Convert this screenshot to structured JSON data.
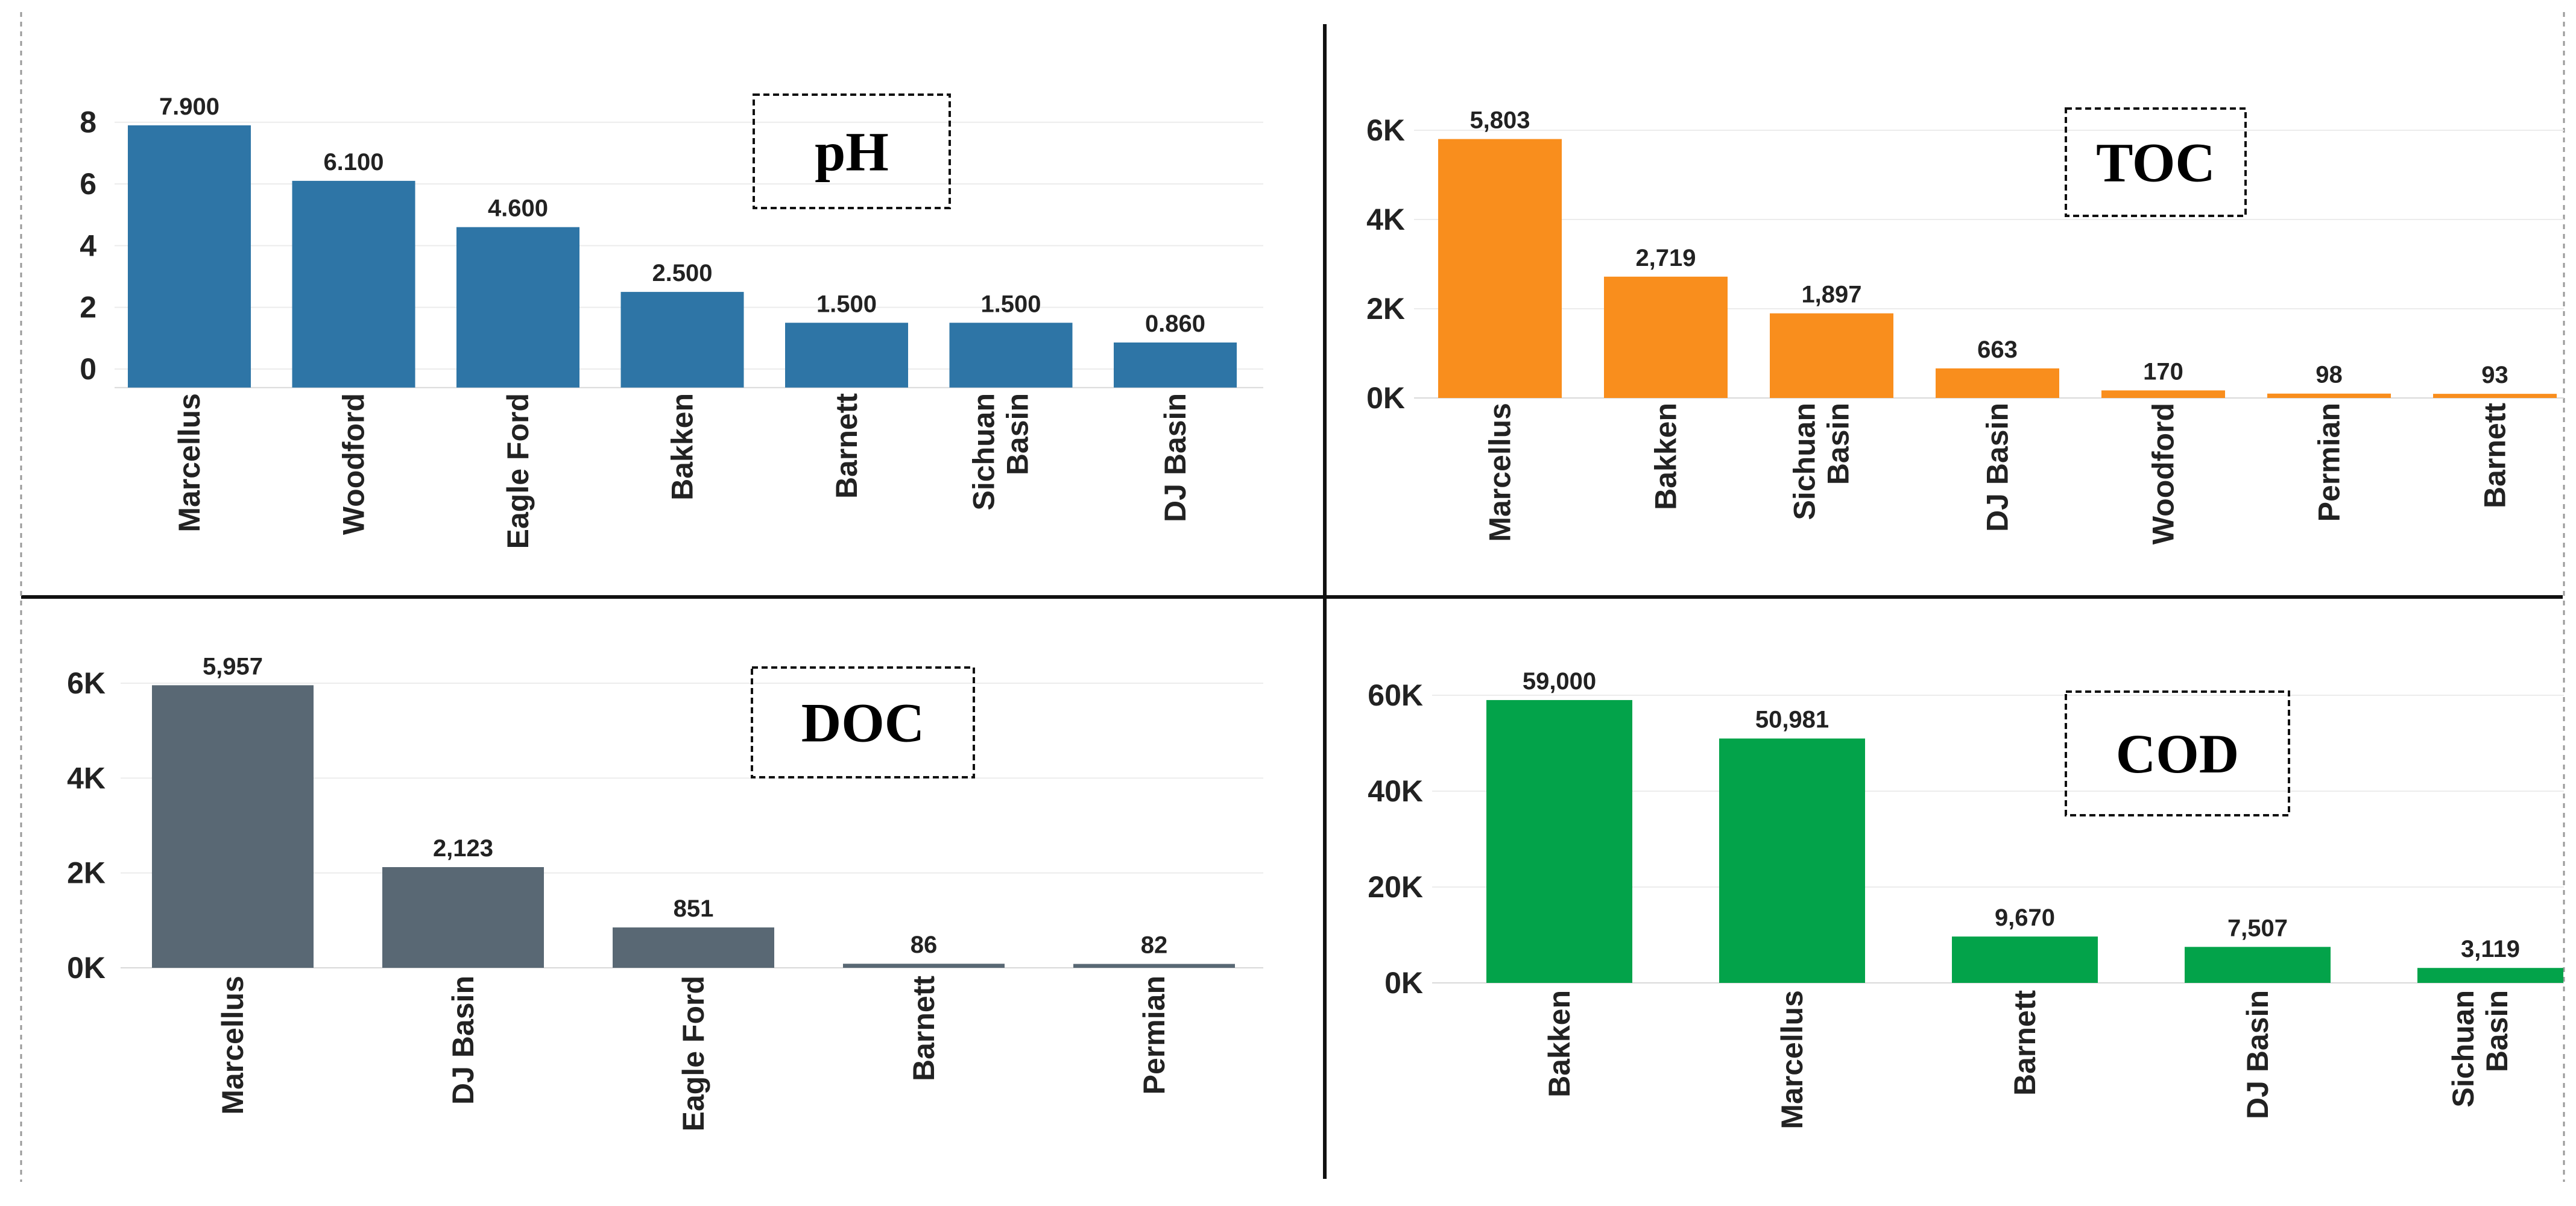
{
  "chart_data": [
    {
      "type": "bar",
      "title": "pH",
      "categories": [
        "Marcellus",
        "Woodford",
        "Eagle Ford",
        "Bakken",
        "Barnett",
        "Sichuan Basin",
        "DJ Basin"
      ],
      "values": [
        7.9,
        6.1,
        4.6,
        2.5,
        1.5,
        1.5,
        0.86
      ],
      "value_labels": [
        "7.900",
        "6.100",
        "4.600",
        "2.500",
        "1.500",
        "1.500",
        "0.860"
      ],
      "yticks": [
        0,
        2,
        4,
        6,
        8
      ],
      "ytick_labels": [
        "0",
        "2",
        "4",
        "6",
        "8"
      ],
      "ylim": [
        -0.6,
        8.6
      ],
      "color": "#2e75a6",
      "xlabel": "",
      "ylabel": ""
    },
    {
      "type": "bar",
      "title": "TOC",
      "categories": [
        "Marcellus",
        "Bakken",
        "Sichuan Basin",
        "DJ Basin",
        "Woodford",
        "Permian",
        "Barnett"
      ],
      "values": [
        5803,
        2719,
        1897,
        663,
        170,
        98,
        93
      ],
      "value_labels": [
        "5,803",
        "2,719",
        "1,897",
        "663",
        "170",
        "98",
        "93"
      ],
      "yticks": [
        0,
        2000,
        4000,
        6000
      ],
      "ytick_labels": [
        "0K",
        "2K",
        "4K",
        "6K"
      ],
      "ylim": [
        0,
        6000
      ],
      "color": "#f98e1d",
      "xlabel": "",
      "ylabel": ""
    },
    {
      "type": "bar",
      "title": "DOC",
      "categories": [
        "Marcellus",
        "DJ Basin",
        "Eagle Ford",
        "Barnett",
        "Permian"
      ],
      "values": [
        5957,
        2123,
        851,
        86,
        82
      ],
      "value_labels": [
        "5,957",
        "2,123",
        "851",
        "86",
        "82"
      ],
      "yticks": [
        0,
        2000,
        4000,
        6000
      ],
      "ytick_labels": [
        "0K",
        "2K",
        "4K",
        "6K"
      ],
      "ylim": [
        0,
        6000
      ],
      "color": "#596874",
      "xlabel": "",
      "ylabel": ""
    },
    {
      "type": "bar",
      "title": "COD",
      "categories": [
        "Bakken",
        "Marcellus",
        "Barnett",
        "DJ Basin",
        "Sichuan Basin"
      ],
      "values": [
        59000,
        50981,
        9670,
        7507,
        3119
      ],
      "value_labels": [
        "59,000",
        "50,981",
        "9,670",
        "7,507",
        "3,119"
      ],
      "yticks": [
        0,
        20000,
        40000,
        60000
      ],
      "ytick_labels": [
        "0K",
        "20K",
        "40K",
        "60K"
      ],
      "ylim": [
        0,
        60000
      ],
      "color": "#03a34a",
      "xlabel": "",
      "ylabel": ""
    }
  ]
}
